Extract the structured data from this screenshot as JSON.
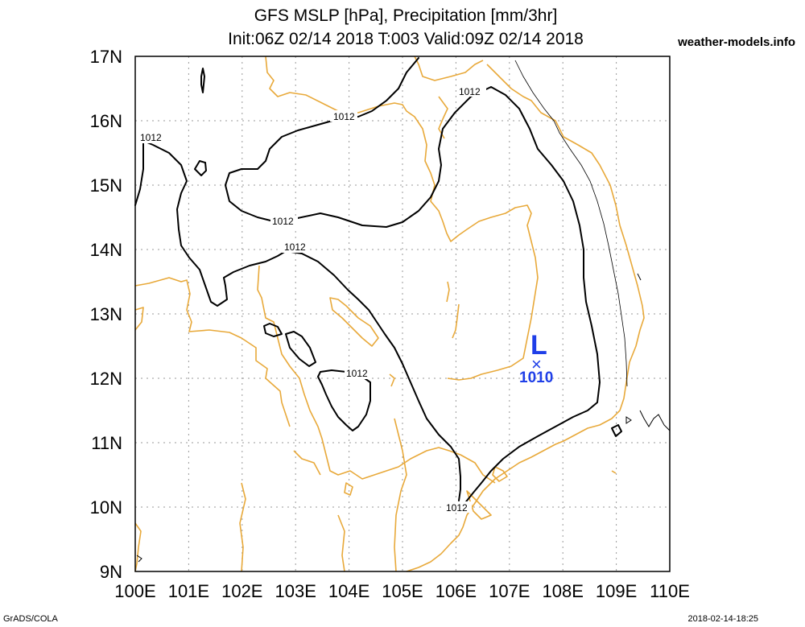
{
  "title": {
    "line1": "GFS MSLP [hPa], Precipitation [mm/3hr]",
    "line2": "Init:06Z 02/14 2018 T:003 Valid:09Z 02/14 2018"
  },
  "site": "weather-models.info",
  "footer": {
    "left": "GrADS/COLA",
    "right": "2018-02-14-18:25"
  },
  "map": {
    "lat_labels": [
      "17N",
      "16N",
      "15N",
      "14N",
      "13N",
      "12N",
      "11N",
      "10N",
      "9N"
    ],
    "lon_labels": [
      "100E",
      "101E",
      "102E",
      "103E",
      "104E",
      "105E",
      "106E",
      "107E",
      "108E",
      "109E",
      "110E"
    ],
    "lat_range": [
      9,
      17
    ],
    "lon_range": [
      100,
      110
    ],
    "isobar_labels": [
      "1012",
      "1012",
      "1012",
      "1012",
      "1012",
      "1012"
    ],
    "low": {
      "symbol": "L",
      "marker": "×",
      "value": "1010",
      "lat": 12.35,
      "lon": 107.6,
      "color": "#1f3fe8"
    },
    "coastline_color": "#e8a93a",
    "isobar_color": "#000000"
  }
}
